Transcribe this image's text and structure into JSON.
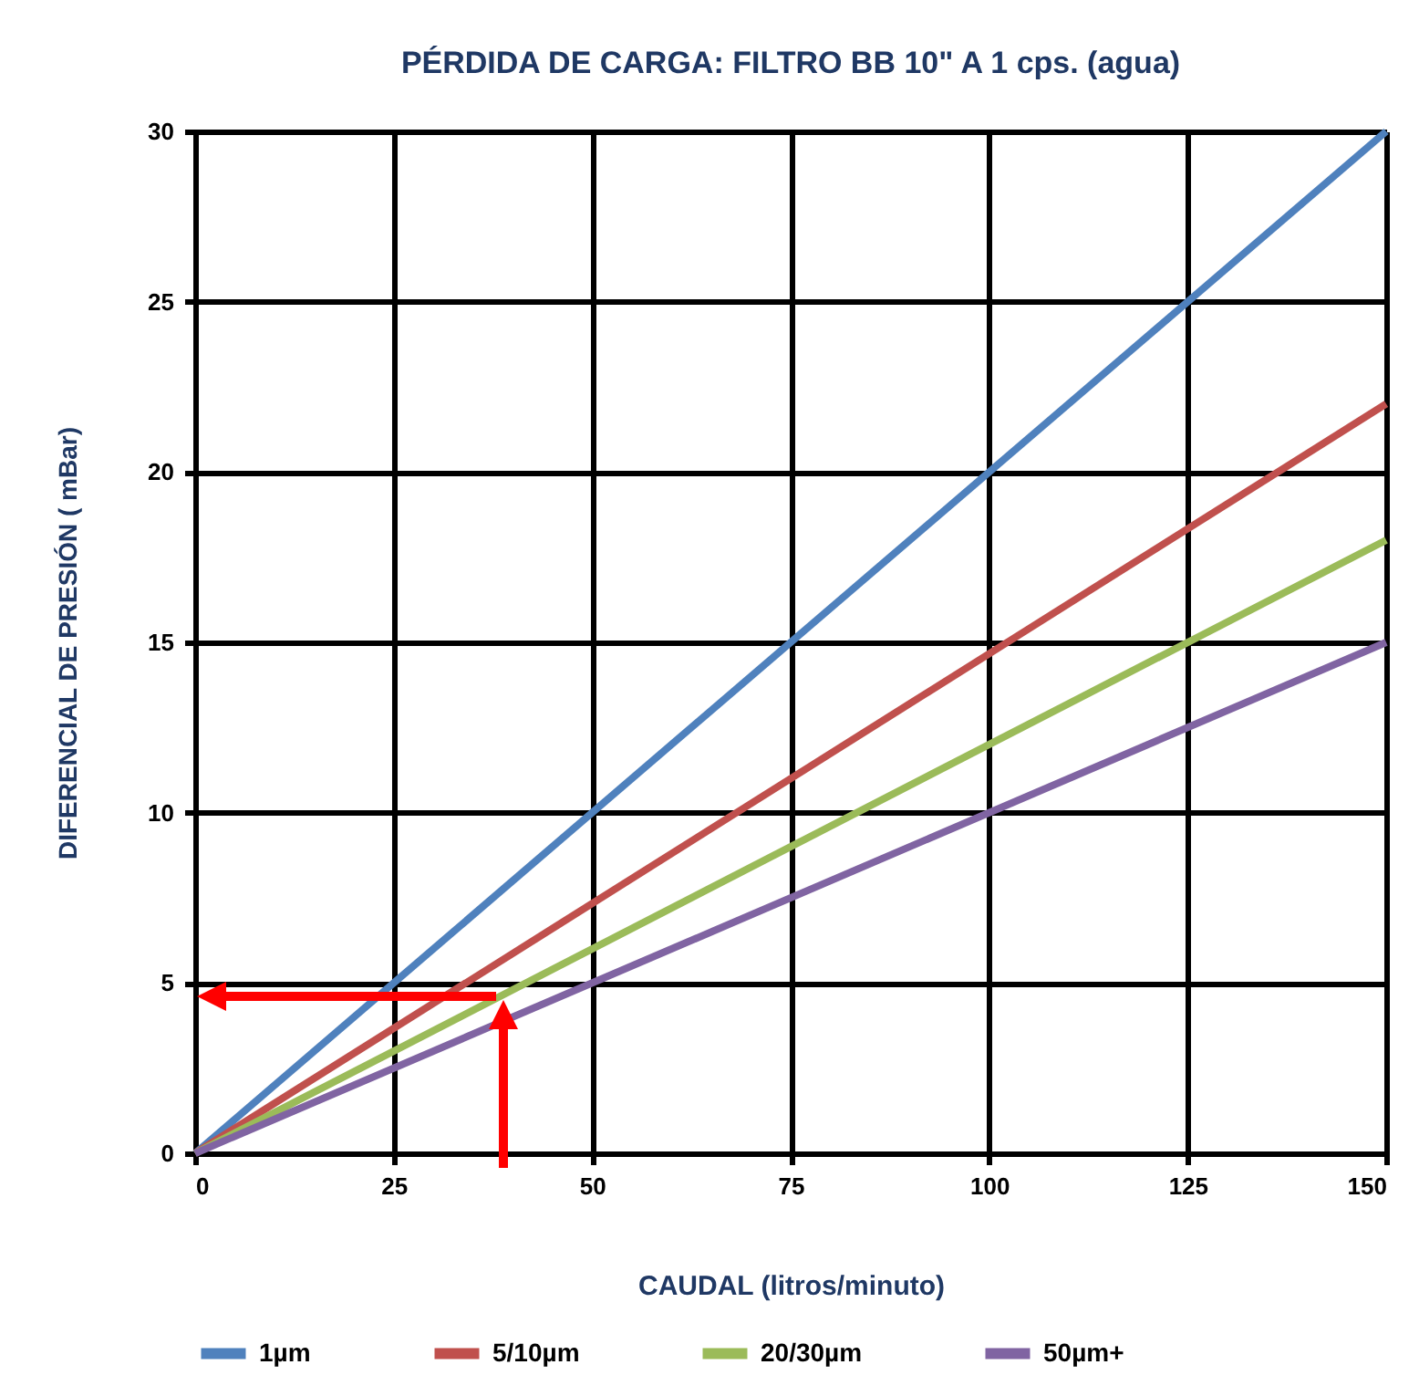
{
  "chart_data": {
    "type": "line",
    "title": "PÉRDIDA DE CARGA: FILTRO BB 10\" A 1 cps. (agua)",
    "xlabel": "CAUDAL (litros/minuto)",
    "ylabel": "DIFERENCIAL DE PRESIÓN ( mBar)",
    "x": [
      0,
      150
    ],
    "series": [
      {
        "name": "1µm",
        "color": "#4f81bd",
        "values": [
          0,
          30
        ]
      },
      {
        "name": "5/10µm",
        "color": "#c0504d",
        "values": [
          0,
          22
        ]
      },
      {
        "name": "20/30µm",
        "color": "#9bbb59",
        "values": [
          0,
          18
        ]
      },
      {
        "name": "50µm+",
        "color": "#8064a2",
        "values": [
          0,
          15
        ]
      }
    ],
    "xlim": [
      0,
      150
    ],
    "xticks": [
      0,
      25,
      50,
      75,
      100,
      125,
      150
    ],
    "ylim": [
      0,
      30
    ],
    "yticks": [
      0,
      5,
      10,
      15,
      20,
      25,
      30
    ],
    "grid": true,
    "legend": "bottom",
    "marker": "none",
    "line_style": "solid"
  }
}
